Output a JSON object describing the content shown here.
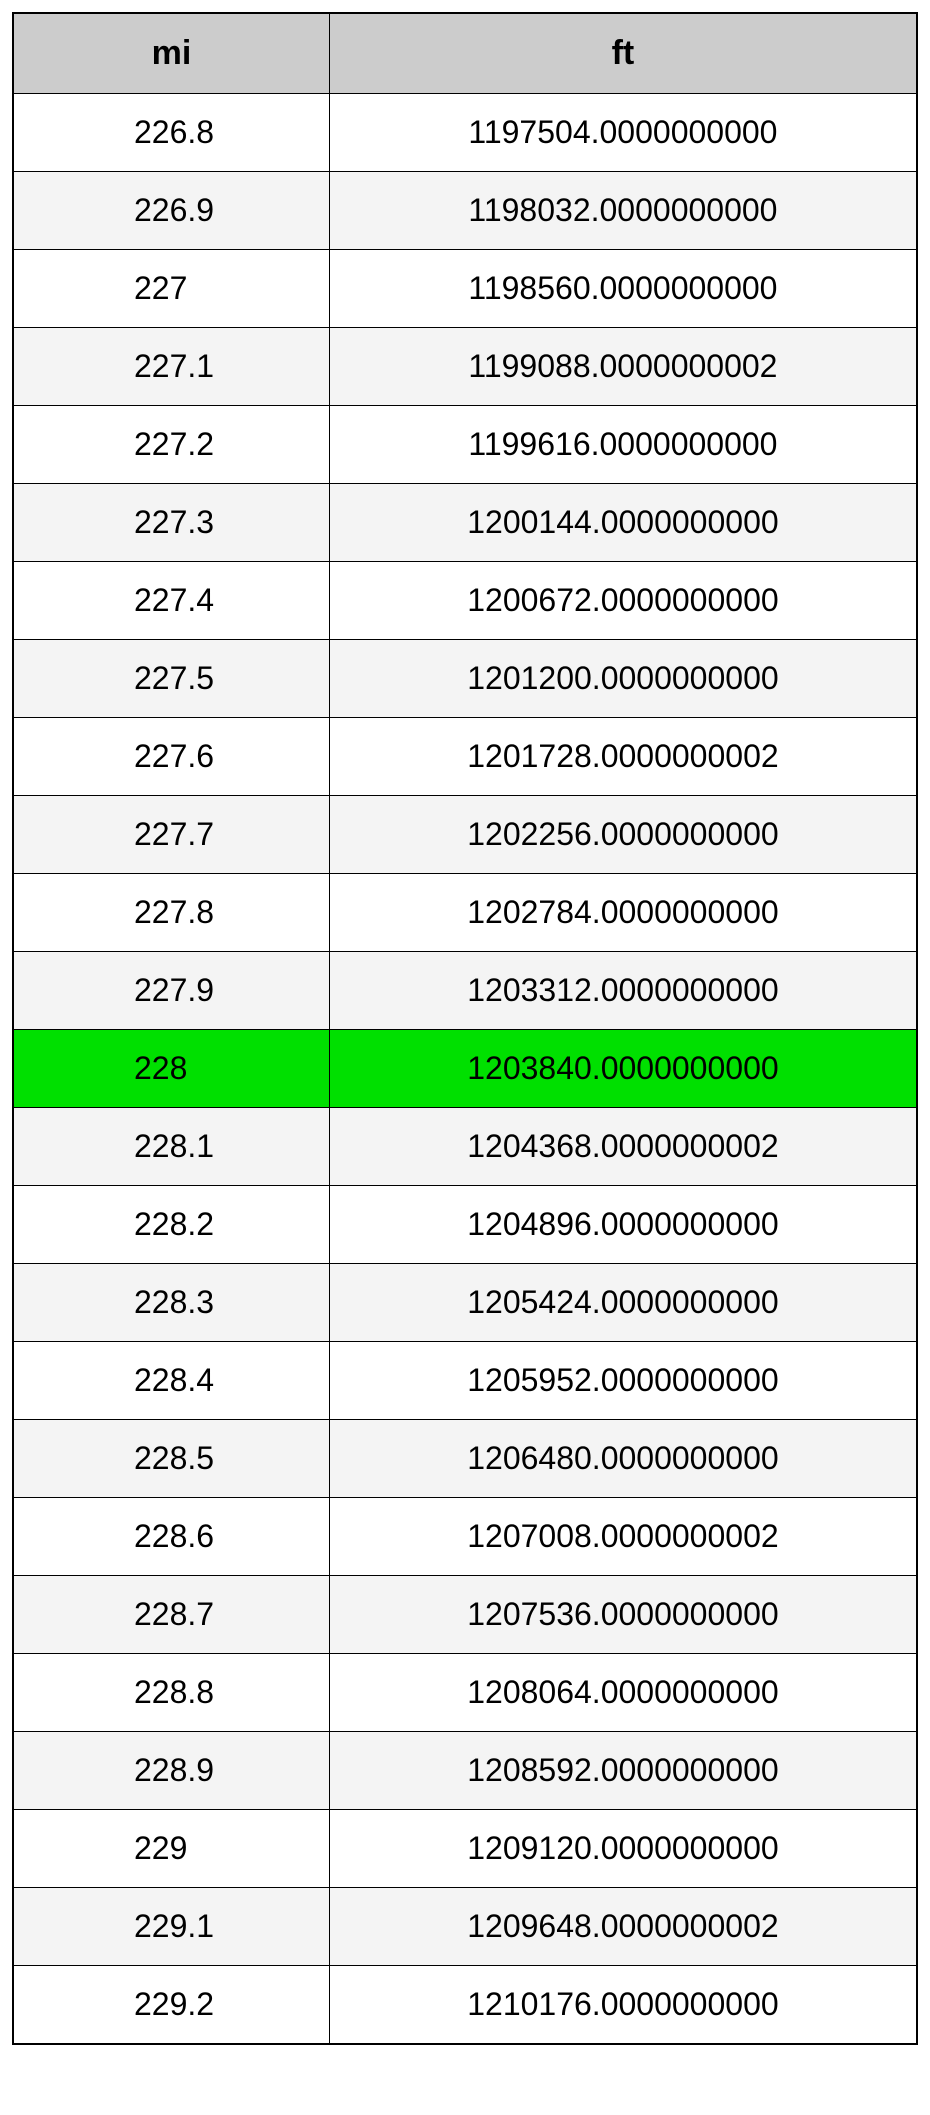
{
  "table": {
    "columns": [
      "mi",
      "ft"
    ],
    "header_bg": "#cccccc",
    "highlight_bg": "#00e000",
    "even_bg": "#ffffff",
    "odd_bg": "#f4f4f4",
    "border_color": "#000000",
    "font_family": "Arial, Helvetica, sans-serif",
    "header_fontsize": 34,
    "cell_fontsize": 32,
    "rows": [
      {
        "mi": "226.8",
        "ft": "1197504.0000000000",
        "highlight": false
      },
      {
        "mi": "226.9",
        "ft": "1198032.0000000000",
        "highlight": false
      },
      {
        "mi": "227",
        "ft": "1198560.0000000000",
        "highlight": false
      },
      {
        "mi": "227.1",
        "ft": "1199088.0000000002",
        "highlight": false
      },
      {
        "mi": "227.2",
        "ft": "1199616.0000000000",
        "highlight": false
      },
      {
        "mi": "227.3",
        "ft": "1200144.0000000000",
        "highlight": false
      },
      {
        "mi": "227.4",
        "ft": "1200672.0000000000",
        "highlight": false
      },
      {
        "mi": "227.5",
        "ft": "1201200.0000000000",
        "highlight": false
      },
      {
        "mi": "227.6",
        "ft": "1201728.0000000002",
        "highlight": false
      },
      {
        "mi": "227.7",
        "ft": "1202256.0000000000",
        "highlight": false
      },
      {
        "mi": "227.8",
        "ft": "1202784.0000000000",
        "highlight": false
      },
      {
        "mi": "227.9",
        "ft": "1203312.0000000000",
        "highlight": false
      },
      {
        "mi": "228",
        "ft": "1203840.0000000000",
        "highlight": true
      },
      {
        "mi": "228.1",
        "ft": "1204368.0000000002",
        "highlight": false
      },
      {
        "mi": "228.2",
        "ft": "1204896.0000000000",
        "highlight": false
      },
      {
        "mi": "228.3",
        "ft": "1205424.0000000000",
        "highlight": false
      },
      {
        "mi": "228.4",
        "ft": "1205952.0000000000",
        "highlight": false
      },
      {
        "mi": "228.5",
        "ft": "1206480.0000000000",
        "highlight": false
      },
      {
        "mi": "228.6",
        "ft": "1207008.0000000002",
        "highlight": false
      },
      {
        "mi": "228.7",
        "ft": "1207536.0000000000",
        "highlight": false
      },
      {
        "mi": "228.8",
        "ft": "1208064.0000000000",
        "highlight": false
      },
      {
        "mi": "228.9",
        "ft": "1208592.0000000000",
        "highlight": false
      },
      {
        "mi": "229",
        "ft": "1209120.0000000000",
        "highlight": false
      },
      {
        "mi": "229.1",
        "ft": "1209648.0000000002",
        "highlight": false
      },
      {
        "mi": "229.2",
        "ft": "1210176.0000000000",
        "highlight": false
      }
    ]
  }
}
